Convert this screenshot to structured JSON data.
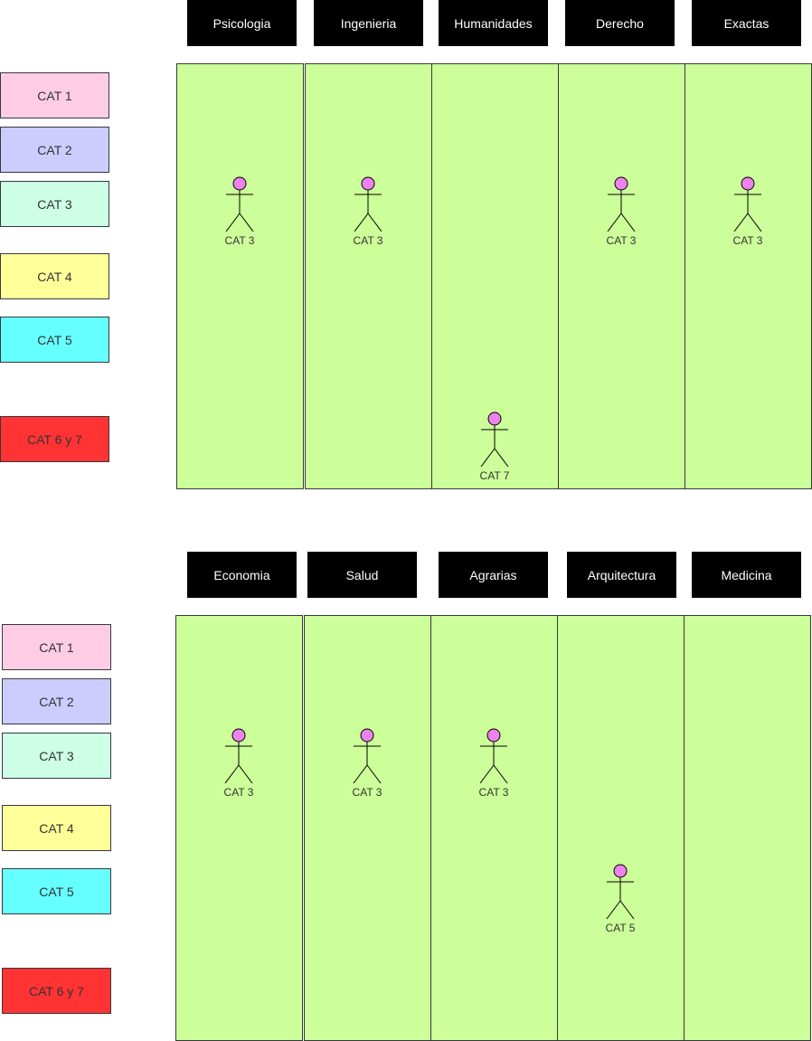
{
  "colors": {
    "column_fill": "#ccff99",
    "header_fill": "#000000",
    "header_text": "#ffffff",
    "actor_head": "#ee82ee"
  },
  "sections": [
    {
      "headers": [
        "Psicologia",
        "Ingenieria",
        "Humanidades",
        "Derecho",
        "Exactas"
      ],
      "legend": [
        {
          "label": "CAT 1",
          "color": "#ffcce6"
        },
        {
          "label": "CAT 2",
          "color": "#ccccff"
        },
        {
          "label": "CAT 3",
          "color": "#ccffe6"
        },
        {
          "label": "CAT 4",
          "color": "#ffff99"
        },
        {
          "label": "CAT 5",
          "color": "#66ffff"
        },
        {
          "label": "CAT 6 y 7",
          "color": "#ff3333"
        }
      ],
      "actors": [
        {
          "label": "CAT 3",
          "column": "Psicologia"
        },
        {
          "label": "CAT 3",
          "column": "Ingenieria"
        },
        {
          "label": "CAT 7",
          "column": "Humanidades"
        },
        {
          "label": "CAT 3",
          "column": "Derecho"
        },
        {
          "label": "CAT 3",
          "column": "Exactas"
        }
      ]
    },
    {
      "headers": [
        "Economia",
        "Salud",
        "Agrarias",
        "Arquitectura",
        "Medicina"
      ],
      "legend": [
        {
          "label": "CAT 1",
          "color": "#ffcce6"
        },
        {
          "label": "CAT 2",
          "color": "#ccccff"
        },
        {
          "label": "CAT 3",
          "color": "#ccffe6"
        },
        {
          "label": "CAT 4",
          "color": "#ffff99"
        },
        {
          "label": "CAT 5",
          "color": "#66ffff"
        },
        {
          "label": "CAT 6 y 7",
          "color": "#ff3333"
        }
      ],
      "actors": [
        {
          "label": "CAT 3",
          "column": "Economia"
        },
        {
          "label": "CAT 3",
          "column": "Salud"
        },
        {
          "label": "CAT 3",
          "column": "Agrarias"
        },
        {
          "label": "CAT 5",
          "column": "Arquitectura"
        }
      ]
    }
  ]
}
